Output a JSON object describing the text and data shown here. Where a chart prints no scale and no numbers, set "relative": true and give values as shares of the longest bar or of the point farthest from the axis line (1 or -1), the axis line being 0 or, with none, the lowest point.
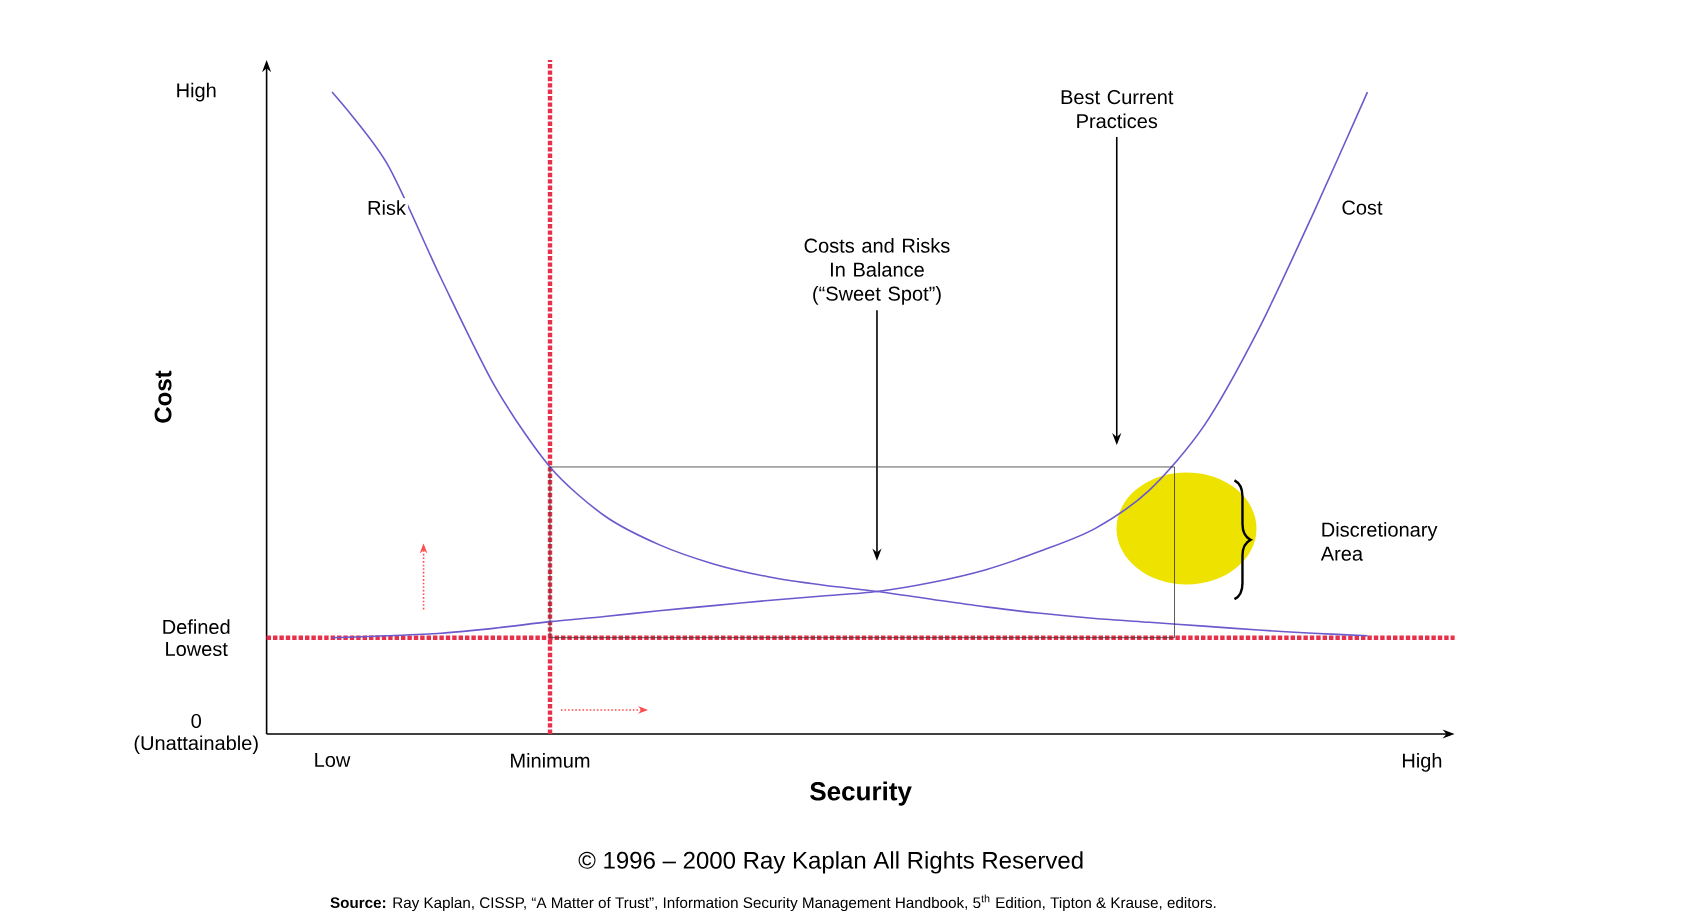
{
  "chart_data": {
    "type": "line",
    "relative": true,
    "xlabel": "Security",
    "ylabel": "Cost",
    "categories": [
      "Low",
      null,
      null,
      null,
      "Minimum",
      null,
      null,
      null,
      null,
      null,
      null,
      null,
      null,
      null,
      null,
      null,
      null,
      null,
      null,
      null,
      "High"
    ],
    "series": [
      {
        "name": "Risk",
        "color": "#6a5acd",
        "values": [
          1.0,
          0.89,
          0.71,
          0.54,
          0.416,
          0.34,
          0.295,
          0.265,
          0.245,
          0.232,
          0.222,
          0.21,
          0.198,
          0.188,
          0.18,
          0.174,
          0.168,
          0.162,
          0.157,
          0.153,
          null
        ]
      },
      {
        "name": "Cost",
        "color": "#6a5acd",
        "values": [
          0.15,
          0.153,
          0.157,
          0.165,
          0.175,
          0.183,
          0.192,
          0.2,
          0.208,
          0.215,
          0.222,
          0.236,
          0.256,
          0.285,
          0.32,
          0.38,
          0.48,
          0.63,
          0.81,
          1.0,
          null
        ]
      }
    ],
    "ref_lines": [
      {
        "axis": "y",
        "value": 0.15,
        "label": "Defined Lowest",
        "color": "#e8304a",
        "line_style": "dotted"
      },
      {
        "axis": "x",
        "value": "Minimum",
        "color": "#e8304a",
        "line_style": "dotted"
      }
    ],
    "annotations": [
      "Costs and Risks In Balance (“Sweet Spot”)",
      "Best Current Practices",
      "Discretionary Area",
      "© 1996 – 2000 Ray Kaplan All Rights Reserved",
      "**Source:** Ray Kaplan, CISSP, “A Matter of Trust”, Information Security Management Handbook, 5$^{th}$ Edition, Tipton & Krause, editors.",
      "High",
      "0 (Unattainable)"
    ],
    "marker": "none",
    "line_style": "solid",
    "grid": false,
    "legend": false
  }
}
